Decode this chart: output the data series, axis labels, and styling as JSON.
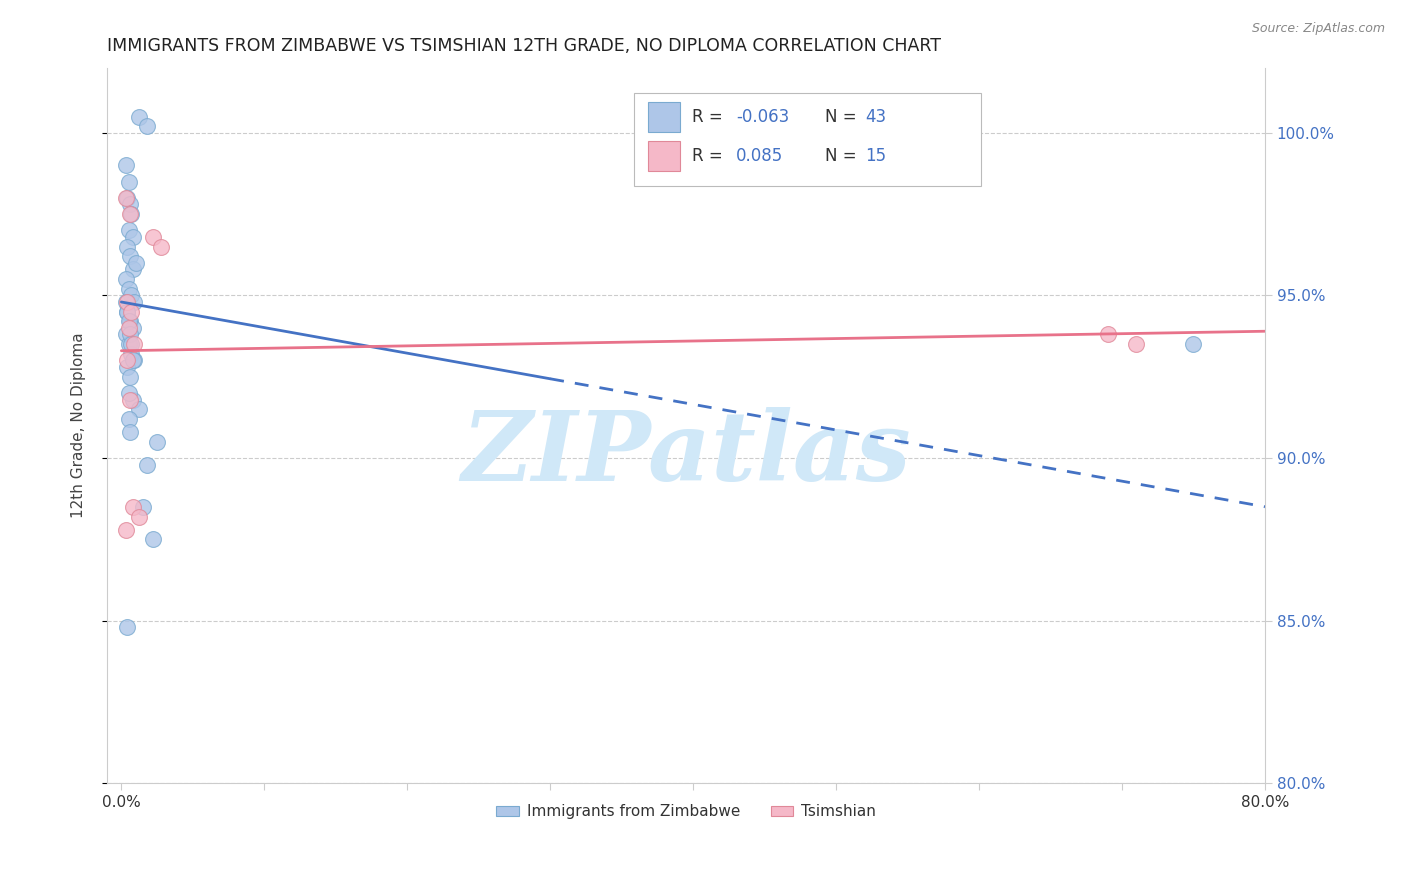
{
  "title": "IMMIGRANTS FROM ZIMBABWE VS TSIMSHIAN 12TH GRADE, NO DIPLOMA CORRELATION CHART",
  "source": "Source: ZipAtlas.com",
  "ylabel": "12th Grade, No Diploma",
  "x_tick_labels": [
    "0.0%",
    "",
    "",
    "",
    "",
    "",
    "",
    "",
    "80.0%"
  ],
  "x_tick_values": [
    0.0,
    10.0,
    20.0,
    30.0,
    40.0,
    50.0,
    60.0,
    70.0,
    80.0
  ],
  "y_tick_labels": [
    "80.0%",
    "85.0%",
    "90.0%",
    "95.0%",
    "100.0%"
  ],
  "y_tick_values": [
    80.0,
    85.0,
    90.0,
    95.0,
    100.0
  ],
  "xlim": [
    -1.0,
    80.0
  ],
  "ylim": [
    80.0,
    102.0
  ],
  "blue_color": "#aec6e8",
  "blue_edge": "#7aaad0",
  "pink_color": "#f5b8c8",
  "pink_edge": "#e08898",
  "reg_blue_color": "#4472c4",
  "reg_pink_color": "#e8728a",
  "watermark": "ZIPatlas",
  "watermark_color": "#d0e8f8",
  "series1_label": "Immigrants from Zimbabwe",
  "series2_label": "Tsimshian",
  "legend_r1_label": "R = ",
  "legend_r1_val": "-0.063",
  "legend_n1_label": "N = ",
  "legend_n1_val": "43",
  "legend_r2_label": "R =  ",
  "legend_r2_val": "0.085",
  "legend_n2_label": "N = ",
  "legend_n2_val": "15",
  "blue_dots_x": [
    1.2,
    1.8,
    0.3,
    0.5,
    0.4,
    0.6,
    0.7,
    0.5,
    0.8,
    0.4,
    0.6,
    0.8,
    1.0,
    0.3,
    0.5,
    0.7,
    0.9,
    0.4,
    0.6,
    0.8,
    0.3,
    0.5,
    0.7,
    0.9,
    0.4,
    0.6,
    0.8,
    1.2,
    0.5,
    0.6,
    0.3,
    0.4,
    0.5,
    0.6,
    0.7,
    0.8,
    0.5,
    2.5,
    1.8,
    1.5,
    2.2,
    0.4,
    75.0
  ],
  "blue_dots_y": [
    100.5,
    100.2,
    99.0,
    98.5,
    98.0,
    97.8,
    97.5,
    97.0,
    96.8,
    96.5,
    96.2,
    95.8,
    96.0,
    95.5,
    95.2,
    95.0,
    94.8,
    94.5,
    94.2,
    94.0,
    93.8,
    93.5,
    93.2,
    93.0,
    92.8,
    92.5,
    91.8,
    91.5,
    91.2,
    90.8,
    94.8,
    94.5,
    94.2,
    93.8,
    93.5,
    93.0,
    92.0,
    90.5,
    89.8,
    88.5,
    87.5,
    84.8,
    93.5
  ],
  "pink_dots_x": [
    0.3,
    0.6,
    2.2,
    2.8,
    0.4,
    0.7,
    0.5,
    0.9,
    0.4,
    0.6,
    0.8,
    1.2,
    0.3,
    69.0,
    71.0
  ],
  "pink_dots_y": [
    98.0,
    97.5,
    96.8,
    96.5,
    94.8,
    94.5,
    94.0,
    93.5,
    93.0,
    91.8,
    88.5,
    88.2,
    87.8,
    93.8,
    93.5
  ],
  "blue_reg_x0": 0.0,
  "blue_reg_y0": 94.8,
  "blue_reg_x1": 80.0,
  "blue_reg_y1": 88.5,
  "pink_reg_x0": 0.0,
  "pink_reg_y0": 93.3,
  "pink_reg_x1": 80.0,
  "pink_reg_y1": 93.9,
  "solid_end_x": 30.0
}
